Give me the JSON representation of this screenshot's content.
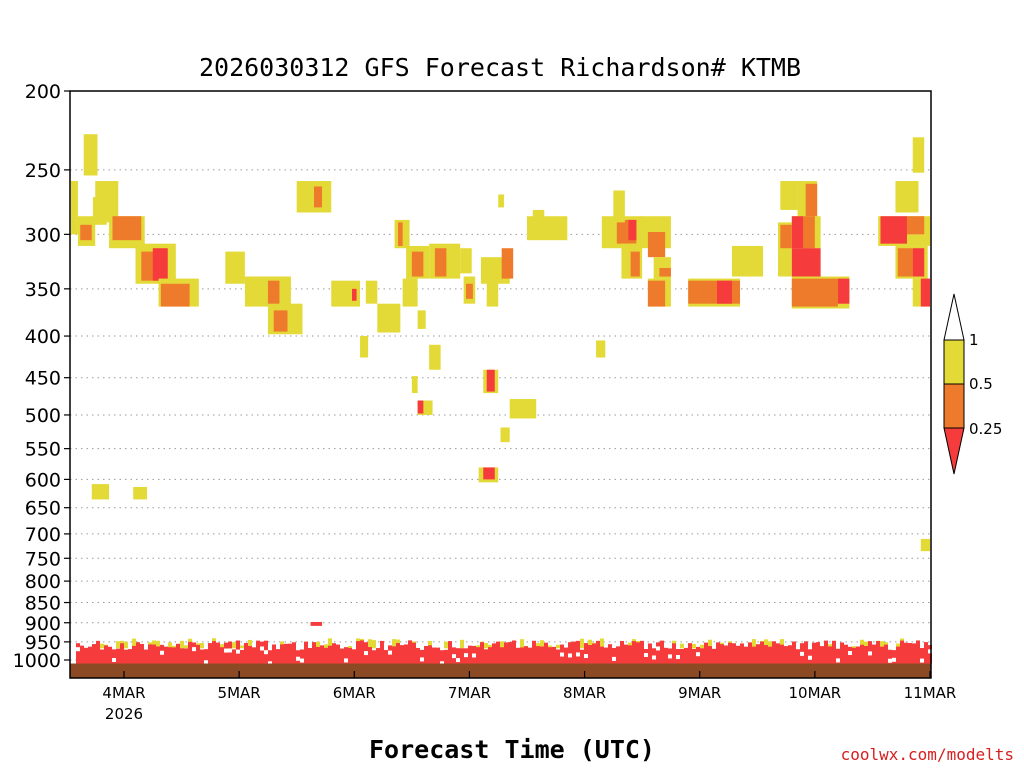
{
  "chart_data": {
    "type": "heatmap",
    "title": "2026030312 GFS Forecast Richardson# KTMB",
    "xlabel": "Forecast Time (UTC)",
    "ylabel": "",
    "credit": "coolwx.com/modelts",
    "y_scale": "log-pressure",
    "y_ticks": [
      200,
      250,
      300,
      350,
      400,
      450,
      500,
      550,
      600,
      650,
      700,
      750,
      800,
      850,
      900,
      950,
      1000
    ],
    "ylim": [
      200,
      1040
    ],
    "x_ticks": [
      {
        "day": 4,
        "label": "4MAR",
        "sublabel": "2026"
      },
      {
        "day": 5,
        "label": "5MAR"
      },
      {
        "day": 6,
        "label": "6MAR"
      },
      {
        "day": 7,
        "label": "7MAR"
      },
      {
        "day": 8,
        "label": "8MAR"
      },
      {
        "day": 9,
        "label": "9MAR"
      },
      {
        "day": 10,
        "label": "10MAR"
      },
      {
        "day": 11,
        "label": "11MAR"
      }
    ],
    "xlim": [
      3.5,
      11.0
    ],
    "grid": "dotted-horizontal",
    "legend": {
      "placement": "right",
      "labels": [
        "1",
        "0.5",
        "0.25"
      ],
      "colors": {
        "yellow": "#e3da38",
        "orange": "#ee7b2b",
        "red": "#f53b3b",
        "ground": "#8b4a24"
      }
    },
    "regions": [
      {
        "c": "y",
        "x0": 3.5,
        "x1": 3.6,
        "p0": 258,
        "p1": 300
      },
      {
        "c": "y",
        "x0": 3.65,
        "x1": 3.77,
        "p0": 226,
        "p1": 254
      },
      {
        "c": "y",
        "x0": 3.6,
        "x1": 3.75,
        "p0": 285,
        "p1": 310
      },
      {
        "c": "o",
        "x0": 3.62,
        "x1": 3.72,
        "p0": 292,
        "p1": 305
      },
      {
        "c": "y",
        "x0": 3.75,
        "x1": 3.95,
        "p0": 258,
        "p1": 290
      },
      {
        "c": "y",
        "x0": 3.73,
        "x1": 3.85,
        "p0": 270,
        "p1": 292
      },
      {
        "c": "y",
        "x0": 3.87,
        "x1": 4.18,
        "p0": 285,
        "p1": 312
      },
      {
        "c": "o",
        "x0": 3.9,
        "x1": 4.15,
        "p0": 285,
        "p1": 305
      },
      {
        "c": "y",
        "x0": 4.1,
        "x1": 4.45,
        "p0": 308,
        "p1": 345
      },
      {
        "c": "o",
        "x0": 4.15,
        "x1": 4.3,
        "p0": 315,
        "p1": 342
      },
      {
        "c": "r",
        "x0": 4.25,
        "x1": 4.38,
        "p0": 312,
        "p1": 342
      },
      {
        "c": "y",
        "x0": 4.3,
        "x1": 4.65,
        "p0": 340,
        "p1": 368
      },
      {
        "c": "o",
        "x0": 4.32,
        "x1": 4.57,
        "p0": 345,
        "p1": 368
      },
      {
        "c": "y",
        "x0": 3.72,
        "x1": 3.87,
        "p0": 608,
        "p1": 635
      },
      {
        "c": "y",
        "x0": 4.08,
        "x1": 4.2,
        "p0": 613,
        "p1": 635
      },
      {
        "c": "y",
        "x0": 4.88,
        "x1": 5.05,
        "p0": 315,
        "p1": 345
      },
      {
        "c": "y",
        "x0": 5.05,
        "x1": 5.45,
        "p0": 338,
        "p1": 368
      },
      {
        "c": "o",
        "x0": 5.25,
        "x1": 5.35,
        "p0": 342,
        "p1": 368
      },
      {
        "c": "y",
        "x0": 5.25,
        "x1": 5.55,
        "p0": 365,
        "p1": 398
      },
      {
        "c": "o",
        "x0": 5.3,
        "x1": 5.42,
        "p0": 372,
        "p1": 395
      },
      {
        "c": "y",
        "x0": 5.5,
        "x1": 5.8,
        "p0": 258,
        "p1": 282
      },
      {
        "c": "o",
        "x0": 5.65,
        "x1": 5.72,
        "p0": 262,
        "p1": 278
      },
      {
        "c": "y",
        "x0": 5.8,
        "x1": 6.05,
        "p0": 342,
        "p1": 368
      },
      {
        "c": "r",
        "x0": 5.98,
        "x1": 6.02,
        "p0": 350,
        "p1": 362
      },
      {
        "c": "y",
        "x0": 6.1,
        "x1": 6.2,
        "p0": 342,
        "p1": 365
      },
      {
        "c": "y",
        "x0": 6.2,
        "x1": 6.4,
        "p0": 365,
        "p1": 396
      },
      {
        "c": "y",
        "x0": 6.05,
        "x1": 6.12,
        "p0": 400,
        "p1": 425
      },
      {
        "c": "y",
        "x0": 6.35,
        "x1": 6.48,
        "p0": 288,
        "p1": 312
      },
      {
        "c": "o",
        "x0": 6.38,
        "x1": 6.42,
        "p0": 290,
        "p1": 310
      },
      {
        "c": "y",
        "x0": 6.45,
        "x1": 6.65,
        "p0": 310,
        "p1": 340
      },
      {
        "c": "o",
        "x0": 6.5,
        "x1": 6.6,
        "p0": 315,
        "p1": 338
      },
      {
        "c": "y",
        "x0": 6.42,
        "x1": 6.55,
        "p0": 340,
        "p1": 368
      },
      {
        "c": "y",
        "x0": 6.65,
        "x1": 6.92,
        "p0": 308,
        "p1": 340
      },
      {
        "c": "o",
        "x0": 6.7,
        "x1": 6.8,
        "p0": 312,
        "p1": 338
      },
      {
        "c": "y",
        "x0": 6.92,
        "x1": 7.02,
        "p0": 312,
        "p1": 335
      },
      {
        "c": "y",
        "x0": 6.95,
        "x1": 7.05,
        "p0": 338,
        "p1": 365
      },
      {
        "c": "o",
        "x0": 6.97,
        "x1": 7.03,
        "p0": 345,
        "p1": 360
      },
      {
        "c": "y",
        "x0": 6.55,
        "x1": 6.62,
        "p0": 372,
        "p1": 392
      },
      {
        "c": "y",
        "x0": 6.65,
        "x1": 6.75,
        "p0": 410,
        "p1": 440
      },
      {
        "c": "y",
        "x0": 6.5,
        "x1": 6.55,
        "p0": 448,
        "p1": 470
      },
      {
        "c": "y",
        "x0": 6.55,
        "x1": 6.68,
        "p0": 480,
        "p1": 500
      },
      {
        "c": "r",
        "x0": 6.55,
        "x1": 6.6,
        "p0": 480,
        "p1": 498
      },
      {
        "c": "y",
        "x0": 7.1,
        "x1": 7.35,
        "p0": 320,
        "p1": 345
      },
      {
        "c": "o",
        "x0": 7.28,
        "x1": 7.38,
        "p0": 312,
        "p1": 340
      },
      {
        "c": "y",
        "x0": 7.15,
        "x1": 7.25,
        "p0": 340,
        "p1": 368
      },
      {
        "c": "y",
        "x0": 7.25,
        "x1": 7.3,
        "p0": 268,
        "p1": 278
      },
      {
        "c": "y",
        "x0": 7.12,
        "x1": 7.25,
        "p0": 440,
        "p1": 470
      },
      {
        "c": "r",
        "x0": 7.15,
        "x1": 7.22,
        "p0": 440,
        "p1": 468
      },
      {
        "c": "y",
        "x0": 7.35,
        "x1": 7.58,
        "p0": 478,
        "p1": 505
      },
      {
        "c": "y",
        "x0": 7.27,
        "x1": 7.35,
        "p0": 518,
        "p1": 540
      },
      {
        "c": "y",
        "x0": 7.08,
        "x1": 7.25,
        "p0": 580,
        "p1": 605
      },
      {
        "c": "r",
        "x0": 7.12,
        "x1": 7.22,
        "p0": 580,
        "p1": 600
      },
      {
        "c": "y",
        "x0": 7.5,
        "x1": 7.85,
        "p0": 285,
        "p1": 305
      },
      {
        "c": "y",
        "x0": 7.55,
        "x1": 7.65,
        "p0": 280,
        "p1": 298
      },
      {
        "c": "y",
        "x0": 8.1,
        "x1": 8.18,
        "p0": 405,
        "p1": 425
      },
      {
        "c": "y",
        "x0": 8.15,
        "x1": 8.5,
        "p0": 285,
        "p1": 312
      },
      {
        "c": "o",
        "x0": 8.28,
        "x1": 8.45,
        "p0": 288,
        "p1": 308
      },
      {
        "c": "r",
        "x0": 8.38,
        "x1": 8.45,
        "p0": 288,
        "p1": 305
      },
      {
        "c": "y",
        "x0": 8.25,
        "x1": 8.35,
        "p0": 265,
        "p1": 290
      },
      {
        "c": "y",
        "x0": 8.32,
        "x1": 8.5,
        "p0": 308,
        "p1": 340
      },
      {
        "c": "o",
        "x0": 8.4,
        "x1": 8.48,
        "p0": 315,
        "p1": 338
      },
      {
        "c": "y",
        "x0": 8.48,
        "x1": 8.75,
        "p0": 285,
        "p1": 312
      },
      {
        "c": "o",
        "x0": 8.55,
        "x1": 8.7,
        "p0": 298,
        "p1": 320
      },
      {
        "c": "y",
        "x0": 8.6,
        "x1": 8.75,
        "p0": 320,
        "p1": 340
      },
      {
        "c": "o",
        "x0": 8.65,
        "x1": 8.75,
        "p0": 330,
        "p1": 338
      },
      {
        "c": "y",
        "x0": 8.55,
        "x1": 8.75,
        "p0": 340,
        "p1": 368
      },
      {
        "c": "o",
        "x0": 8.55,
        "x1": 8.7,
        "p0": 342,
        "p1": 368
      },
      {
        "c": "y",
        "x0": 8.9,
        "x1": 9.35,
        "p0": 340,
        "p1": 368
      },
      {
        "c": "o",
        "x0": 8.9,
        "x1": 9.35,
        "p0": 342,
        "p1": 365
      },
      {
        "c": "r",
        "x0": 9.15,
        "x1": 9.28,
        "p0": 342,
        "p1": 365
      },
      {
        "c": "y",
        "x0": 9.28,
        "x1": 9.55,
        "p0": 310,
        "p1": 338
      },
      {
        "c": "y",
        "x0": 9.7,
        "x1": 9.85,
        "p0": 258,
        "p1": 280
      },
      {
        "c": "y",
        "x0": 9.85,
        "x1": 10.02,
        "p0": 258,
        "p1": 290
      },
      {
        "c": "o",
        "x0": 9.92,
        "x1": 10.02,
        "p0": 260,
        "p1": 285
      },
      {
        "c": "y",
        "x0": 9.68,
        "x1": 9.8,
        "p0": 290,
        "p1": 338
      },
      {
        "c": "o",
        "x0": 9.7,
        "x1": 9.8,
        "p0": 292,
        "p1": 312
      },
      {
        "c": "y",
        "x0": 9.8,
        "x1": 10.05,
        "p0": 285,
        "p1": 312
      },
      {
        "c": "r",
        "x0": 9.8,
        "x1": 9.9,
        "p0": 285,
        "p1": 312
      },
      {
        "c": "o",
        "x0": 9.9,
        "x1": 10.0,
        "p0": 285,
        "p1": 312
      },
      {
        "c": "r",
        "x0": 9.8,
        "x1": 10.05,
        "p0": 312,
        "p1": 338
      },
      {
        "c": "y",
        "x0": 9.8,
        "x1": 10.3,
        "p0": 338,
        "p1": 370
      },
      {
        "c": "o",
        "x0": 9.8,
        "x1": 10.2,
        "p0": 340,
        "p1": 368
      },
      {
        "c": "r",
        "x0": 10.2,
        "x1": 10.3,
        "p0": 340,
        "p1": 365
      },
      {
        "c": "y",
        "x0": 10.7,
        "x1": 10.9,
        "p0": 258,
        "p1": 282
      },
      {
        "c": "y",
        "x0": 10.85,
        "x1": 10.95,
        "p0": 228,
        "p1": 252
      },
      {
        "c": "y",
        "x0": 10.55,
        "x1": 11.0,
        "p0": 285,
        "p1": 310
      },
      {
        "c": "r",
        "x0": 10.57,
        "x1": 10.8,
        "p0": 285,
        "p1": 308
      },
      {
        "c": "o",
        "x0": 10.8,
        "x1": 10.95,
        "p0": 285,
        "p1": 300
      },
      {
        "c": "y",
        "x0": 10.7,
        "x1": 10.98,
        "p0": 310,
        "p1": 340
      },
      {
        "c": "o",
        "x0": 10.72,
        "x1": 10.85,
        "p0": 312,
        "p1": 338
      },
      {
        "c": "r",
        "x0": 10.85,
        "x1": 10.95,
        "p0": 312,
        "p1": 338
      },
      {
        "c": "y",
        "x0": 10.85,
        "x1": 11.0,
        "p0": 340,
        "p1": 368
      },
      {
        "c": "r",
        "x0": 10.92,
        "x1": 11.0,
        "p0": 340,
        "p1": 368
      },
      {
        "c": "y",
        "x0": 10.92,
        "x1": 11.0,
        "p0": 710,
        "p1": 735
      },
      {
        "c": "r",
        "x0": 5.62,
        "x1": 5.72,
        "p0": 898,
        "p1": 908
      }
    ],
    "boundary_layer": {
      "p_top_yellow": 940,
      "p_top_red": 962,
      "p_bottom": 1010
    },
    "ground": {
      "p0": 1010,
      "p1": 1030
    }
  }
}
